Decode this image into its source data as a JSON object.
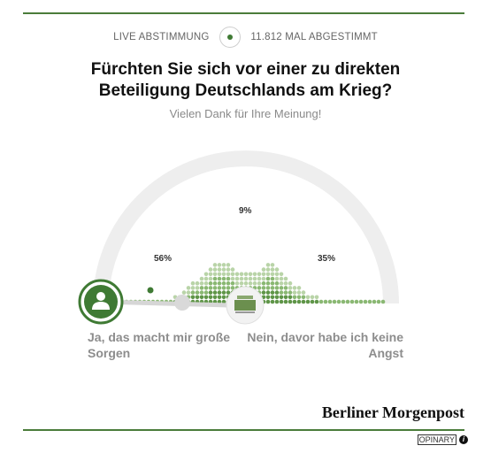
{
  "header": {
    "live_label": "LIVE ABSTIMMUNG",
    "votes_label": "11.812 MAL ABGESTIMMT"
  },
  "poll": {
    "question_line1": "Fürchten Sie sich vor einer zu direkten",
    "question_line2": "Beteiligung Deutschlands am Krieg?",
    "thanks": "Vielen Dank für Ihre Meinung!",
    "left_option": "Ja, das macht mir große Sorgen",
    "right_option": "Nein, davor habe ich keine Angst",
    "percent_left": "56%",
    "percent_middle": "9%",
    "percent_right": "35%"
  },
  "chart_data": {
    "type": "bar",
    "categories": [
      "Ja, das macht mir große Sorgen",
      "",
      "Nein, davor habe ich keine Angst"
    ],
    "values": [
      56,
      9,
      35
    ]
  },
  "colors": {
    "accent": "#4a7c3a",
    "dot_light": "#b9d4a8",
    "dot_mid": "#8ab873",
    "dot_dark": "#5f9548",
    "arc": "#eeeeee"
  },
  "footer": {
    "brand": "Berliner Morgenpost",
    "opinary": "OPINARY",
    "info_icon": "info-icon"
  }
}
